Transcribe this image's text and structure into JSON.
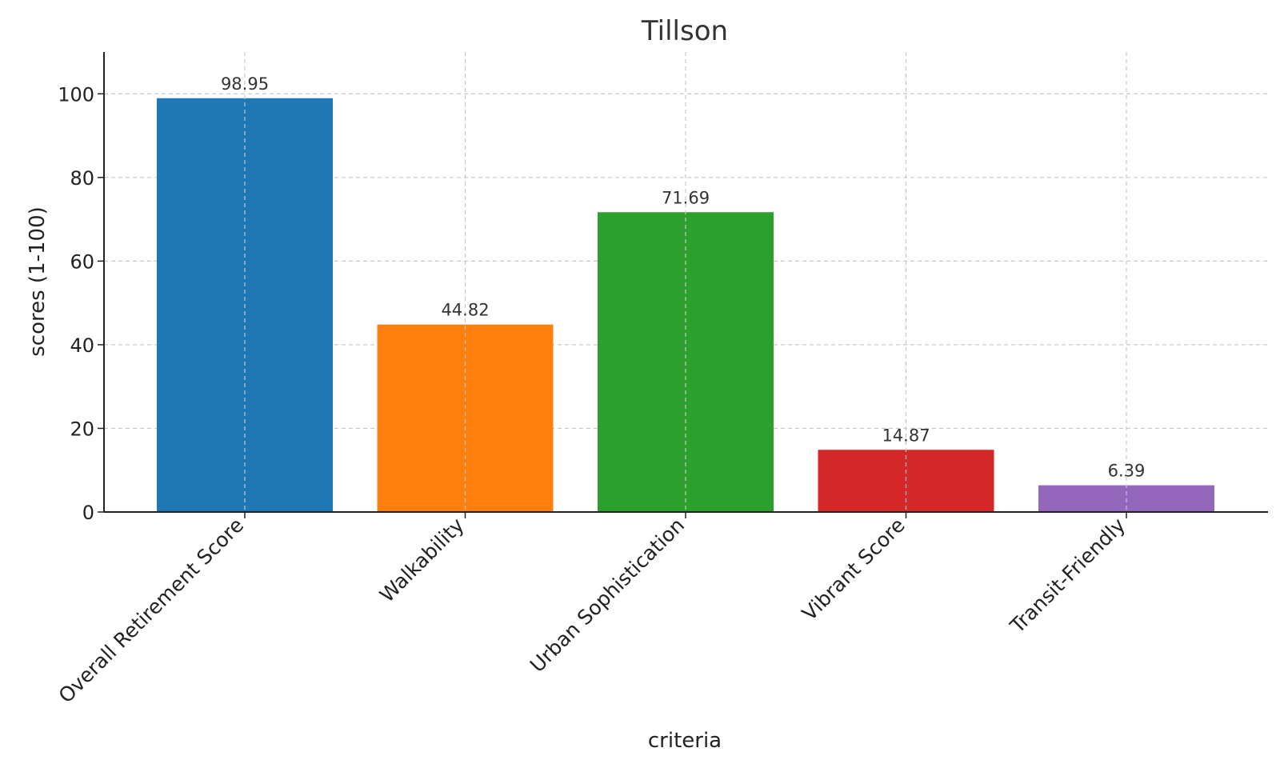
{
  "chart_data": {
    "type": "bar",
    "title": "Tillson",
    "xlabel": "criteria",
    "ylabel": "scores (1-100)",
    "ylim": [
      0,
      110
    ],
    "yticks": [
      0,
      20,
      40,
      60,
      80,
      100
    ],
    "grid": true,
    "categories": [
      "Overall Retirement Score",
      "Walkability",
      "Urban Sophistication",
      "Vibrant Score",
      "Transit-Friendly"
    ],
    "values": [
      98.95,
      44.82,
      71.69,
      14.87,
      6.39
    ],
    "value_labels": [
      "98.95",
      "44.82",
      "71.69",
      "14.87",
      "6.39"
    ],
    "colors": [
      "#1f77b4",
      "#ff7f0e",
      "#2ca02c",
      "#d62728",
      "#9467bd"
    ]
  }
}
